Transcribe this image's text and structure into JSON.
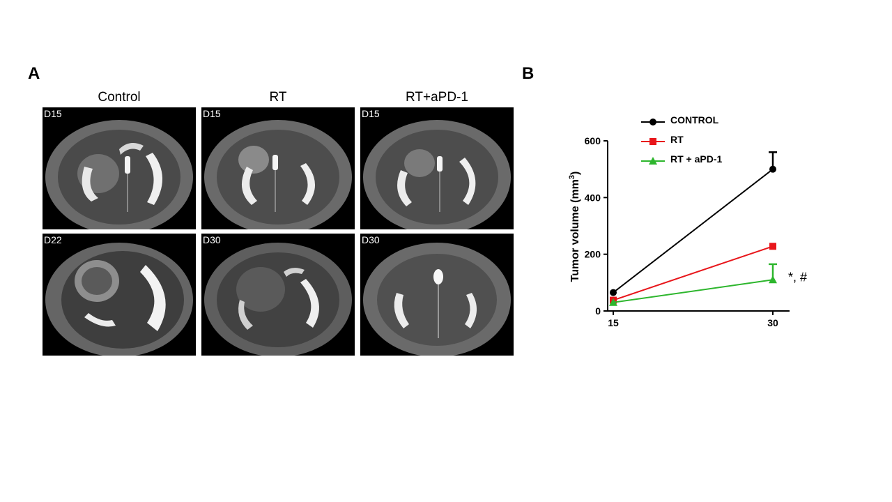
{
  "panel_a": {
    "letter": "A",
    "columns": [
      "Control",
      "RT",
      "RT+aPD-1"
    ],
    "images": [
      {
        "day": "D15",
        "group": "Control"
      },
      {
        "day": "D15",
        "group": "RT"
      },
      {
        "day": "D15",
        "group": "RT+aPD-1"
      },
      {
        "day": "D22",
        "group": "Control"
      },
      {
        "day": "D30",
        "group": "RT"
      },
      {
        "day": "D30",
        "group": "RT+aPD-1"
      }
    ]
  },
  "panel_b": {
    "letter": "B"
  },
  "chart_data": {
    "type": "line",
    "x": [
      15,
      30
    ],
    "xticks": [
      "15",
      "30"
    ],
    "ylabel": "Tumor volume (mm3)",
    "ylim": [
      0,
      600
    ],
    "yticks": [
      "0",
      "200",
      "400",
      "600"
    ],
    "grid": false,
    "legend": "top-left",
    "series": [
      {
        "name": "CONTROL",
        "values": [
          65,
          500
        ],
        "error": [
          0,
          60
        ],
        "color": "#000000",
        "marker": "circle"
      },
      {
        "name": "RT",
        "values": [
          38,
          228
        ],
        "error": [
          0,
          0
        ],
        "color": "#e8161b",
        "marker": "square"
      },
      {
        "name": "RT + aPD-1",
        "values": [
          30,
          110
        ],
        "error": [
          0,
          55
        ],
        "color": "#2db62d",
        "marker": "triangle"
      }
    ],
    "annotation": "*, #"
  }
}
